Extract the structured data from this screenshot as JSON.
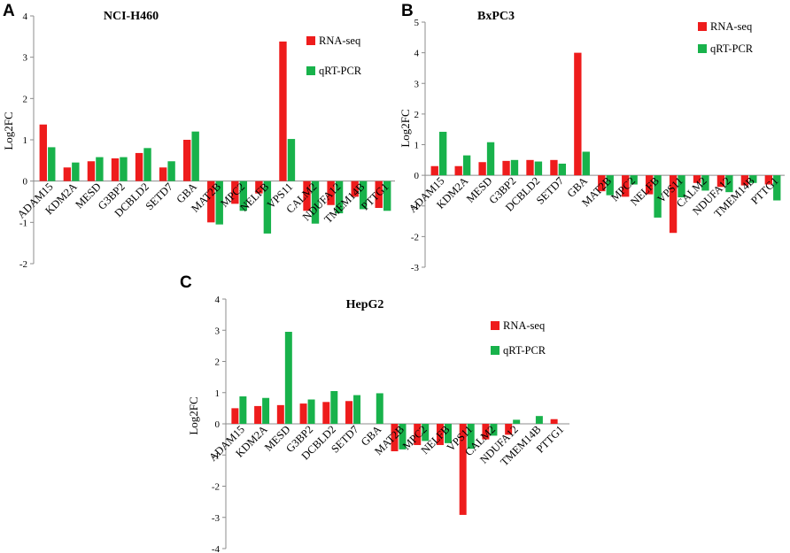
{
  "chart_data": [
    {
      "panel": "A",
      "type": "bar",
      "title": "NCI-H460",
      "ylabel": "Log2FC",
      "xlabel": "",
      "ylim": [
        -2,
        4
      ],
      "yticks": [
        "-2",
        "-1",
        "0",
        "1",
        "2",
        "3",
        "4"
      ],
      "legend_position": "top-right",
      "categories": [
        "ADAM15",
        "KDM2A",
        "MESD",
        "G3BP2",
        "DCBLD2",
        "SETD7",
        "GBA",
        "MAT2B",
        "MPC2",
        "NELFB",
        "VPS11",
        "CALM2",
        "NDUFA12",
        "TMEM14B",
        "PTTG1"
      ],
      "series": [
        {
          "name": "RNA-seq",
          "color": "#ee1c1c",
          "values": [
            1.37,
            0.33,
            0.48,
            0.55,
            0.68,
            0.33,
            1.0,
            -1.0,
            -0.55,
            -0.3,
            3.38,
            -0.72,
            -0.58,
            -0.38,
            -0.65
          ]
        },
        {
          "name": "qRT-PCR",
          "color": "#18b24b",
          "values": [
            0.82,
            0.45,
            0.58,
            0.58,
            0.8,
            0.48,
            1.2,
            -1.05,
            -0.72,
            -1.27,
            1.02,
            -1.03,
            -0.78,
            -0.68,
            -0.72
          ]
        }
      ]
    },
    {
      "panel": "B",
      "type": "bar",
      "title": "BxPC3",
      "ylabel": "Log2FC",
      "xlabel": "",
      "ylim": [
        -3,
        5
      ],
      "yticks": [
        "-3",
        "-2",
        "-1",
        "0",
        "1",
        "2",
        "3",
        "4",
        "5"
      ],
      "legend_position": "top-right",
      "categories": [
        "ADAM15",
        "KDM2A",
        "MESD",
        "G3BP2",
        "DCBLD2",
        "SETD7",
        "GBA",
        "MAT2B",
        "MPC2",
        "NELFB",
        "VPS11",
        "CALM2",
        "NDUFA12",
        "TMEM14B",
        "PTTG1"
      ],
      "series": [
        {
          "name": "RNA-seq",
          "color": "#ee1c1c",
          "values": [
            0.3,
            0.3,
            0.43,
            0.47,
            0.5,
            0.5,
            4.0,
            -0.52,
            -0.7,
            -0.62,
            -1.88,
            -0.25,
            -0.38,
            -0.33,
            -0.3
          ]
        },
        {
          "name": "qRT-PCR",
          "color": "#18b24b",
          "values": [
            1.42,
            0.65,
            1.08,
            0.5,
            0.45,
            0.38,
            0.77,
            -0.65,
            -0.3,
            -1.38,
            -0.72,
            -0.5,
            -0.55,
            -0.25,
            -0.82
          ]
        }
      ]
    },
    {
      "panel": "C",
      "type": "bar",
      "title": "HepG2",
      "ylabel": "Log2FC",
      "xlabel": "",
      "ylim": [
        -4,
        4
      ],
      "yticks": [
        "-4",
        "-3",
        "-2",
        "-1",
        "0",
        "1",
        "2",
        "3",
        "4"
      ],
      "legend_position": "top-right",
      "categories": [
        "ADAM15",
        "KDM2A",
        "MESD",
        "G3BP2",
        "DCBLD2",
        "SETD7",
        "GBA",
        "MAT2B",
        "MPC2",
        "NELFB",
        "VPS11",
        "CALM2",
        "NDUFA12",
        "TMEM14B",
        "PTTG1"
      ],
      "series": [
        {
          "name": "RNA-seq",
          "color": "#ee1c1c",
          "values": [
            0.5,
            0.57,
            0.6,
            0.65,
            0.7,
            0.73,
            0.0,
            -0.88,
            -0.68,
            -0.68,
            -2.92,
            -0.5,
            -0.35,
            0.0,
            0.15
          ]
        },
        {
          "name": "qRT-PCR",
          "color": "#18b24b",
          "values": [
            0.88,
            0.83,
            2.95,
            0.78,
            1.05,
            0.92,
            0.98,
            -0.82,
            -0.55,
            -0.62,
            -0.8,
            -0.38,
            0.13,
            0.25,
            0.0
          ]
        }
      ]
    }
  ]
}
